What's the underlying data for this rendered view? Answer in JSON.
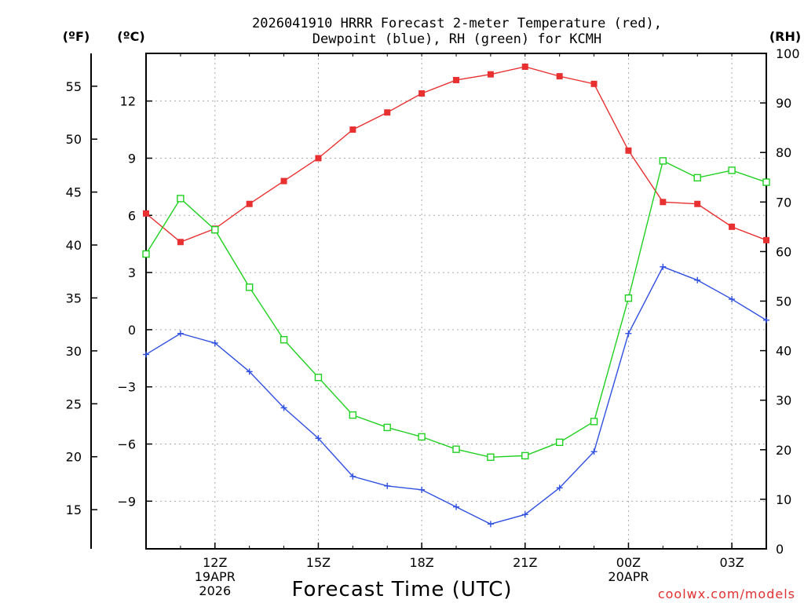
{
  "chart_data": {
    "type": "line",
    "title": [
      "2026041910 HRRR Forecast 2-meter Temperature (red),",
      "Dewpoint (blue), RH (green) for KCMH"
    ],
    "xlabel": "Forecast Time (UTC)",
    "credit": "coolwx.com/models",
    "units": {
      "fahrenheit": "(ºF)",
      "celsius": "(ºC)",
      "rh": "(RH)"
    },
    "hours": [
      0,
      1,
      2,
      3,
      4,
      5,
      6,
      7,
      8,
      9,
      10,
      11,
      12,
      13,
      14,
      15,
      16,
      17,
      18
    ],
    "x_ticks": [
      {
        "hour": 2,
        "lines": [
          "12Z",
          "19APR",
          "2026"
        ]
      },
      {
        "hour": 5,
        "lines": [
          "15Z"
        ]
      },
      {
        "hour": 8,
        "lines": [
          "18Z"
        ]
      },
      {
        "hour": 11,
        "lines": [
          "21Z"
        ]
      },
      {
        "hour": 14,
        "lines": [
          "00Z",
          "20APR"
        ]
      },
      {
        "hour": 17,
        "lines": [
          "03Z"
        ]
      }
    ],
    "celsius_axis": {
      "range": [
        -11.5,
        14.5
      ],
      "ticks": [
        "12",
        "9",
        "6",
        "3",
        "0",
        "−3",
        "−6",
        "−9"
      ],
      "tick_values": [
        12,
        9,
        6,
        3,
        0,
        -3,
        -6,
        -9
      ]
    },
    "fahrenheit_axis": {
      "ticks": [
        "55",
        "50",
        "45",
        "40",
        "35",
        "30",
        "25",
        "20",
        "15"
      ],
      "tick_values": [
        55,
        50,
        45,
        40,
        35,
        30,
        25,
        20,
        15
      ]
    },
    "rh_axis": {
      "range": [
        0,
        100
      ],
      "ticks": [
        "100",
        "90",
        "80",
        "70",
        "60",
        "50",
        "40",
        "30",
        "20",
        "10",
        "0"
      ],
      "tick_values": [
        100,
        90,
        80,
        70,
        60,
        50,
        40,
        30,
        20,
        10,
        0
      ]
    },
    "series": [
      {
        "name": "Temperature",
        "unit": "C",
        "color": "#e83030",
        "marker": "filled-square",
        "values": [
          6.1,
          4.6,
          5.3,
          6.6,
          7.8,
          9.0,
          10.5,
          11.4,
          12.4,
          13.1,
          13.4,
          13.8,
          13.3,
          12.9,
          9.4,
          6.7,
          6.6,
          5.4,
          4.7
        ]
      },
      {
        "name": "Dewpoint",
        "unit": "C",
        "color": "#3050e0",
        "marker": "plus",
        "values": [
          -1.3,
          -0.2,
          -0.7,
          -2.2,
          -4.1,
          -5.7,
          -7.7,
          -8.2,
          -8.4,
          -9.3,
          -10.2,
          -9.7,
          -8.3,
          -6.4,
          -0.2,
          3.3,
          2.6,
          1.6,
          0.5
        ]
      },
      {
        "name": "RH",
        "unit": "%",
        "color": "#20d020",
        "marker": "open-square",
        "values": [
          59.5,
          70.7,
          64.4,
          52.8,
          42.2,
          34.6,
          27.0,
          24.5,
          22.6,
          20.1,
          18.5,
          18.8,
          21.5,
          25.7,
          50.6,
          78.3,
          74.9,
          76.4,
          74.0
        ]
      }
    ]
  }
}
